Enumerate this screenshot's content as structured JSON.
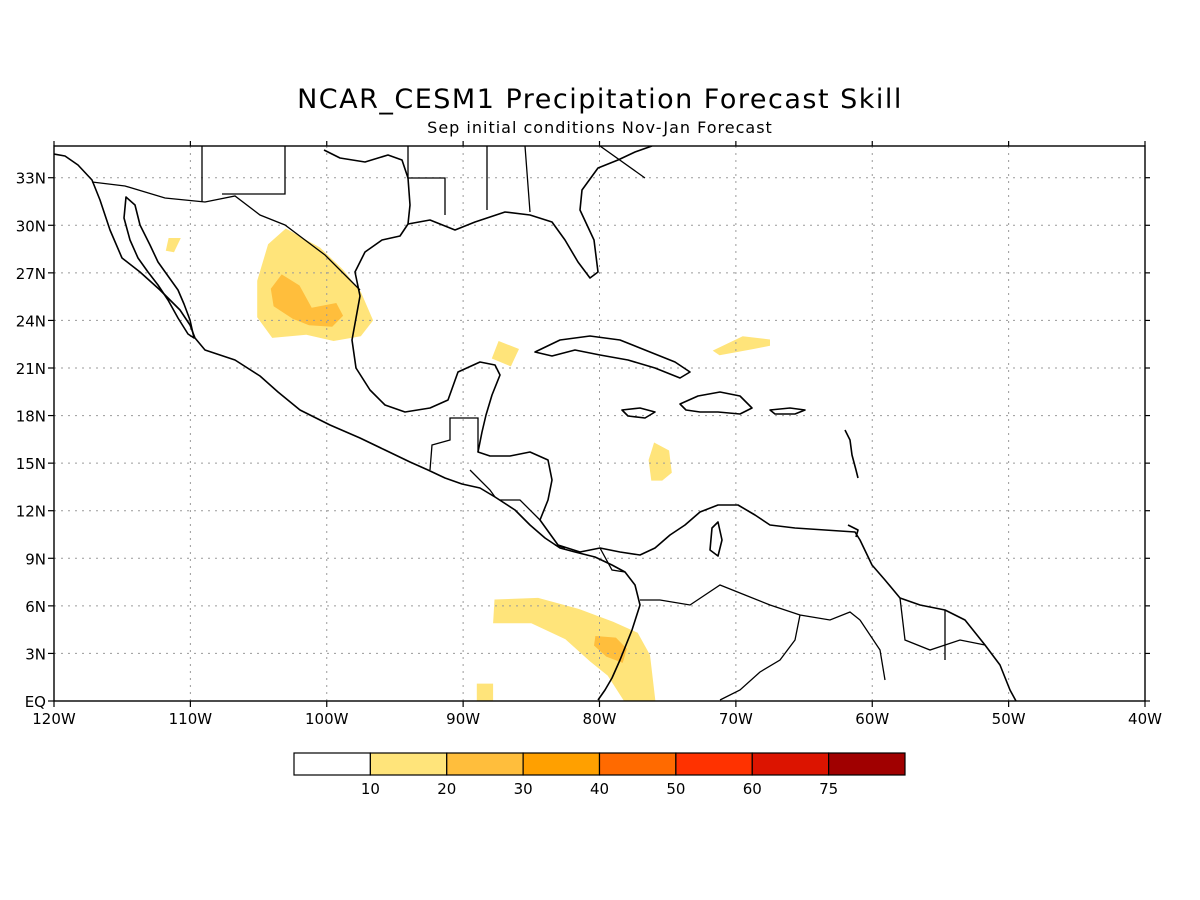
{
  "title": "NCAR_CESM1 Precipitation Forecast Skill",
  "subtitle": "Sep initial conditions   Nov-Jan Forecast",
  "map": {
    "lon_range": [
      -120,
      -40
    ],
    "lat_range": [
      0,
      35
    ],
    "x_ticks": [
      {
        "value": -120,
        "label": "120W"
      },
      {
        "value": -110,
        "label": "110W"
      },
      {
        "value": -100,
        "label": "100W"
      },
      {
        "value": -90,
        "label": "90W"
      },
      {
        "value": -80,
        "label": "80W"
      },
      {
        "value": -70,
        "label": "70W"
      },
      {
        "value": -60,
        "label": "60W"
      },
      {
        "value": -50,
        "label": "50W"
      },
      {
        "value": -40,
        "label": "40W"
      }
    ],
    "y_ticks": [
      {
        "value": 0,
        "label": "EQ"
      },
      {
        "value": 3,
        "label": "3N"
      },
      {
        "value": 6,
        "label": "6N"
      },
      {
        "value": 9,
        "label": "9N"
      },
      {
        "value": 12,
        "label": "12N"
      },
      {
        "value": 15,
        "label": "15N"
      },
      {
        "value": 18,
        "label": "18N"
      },
      {
        "value": 21,
        "label": "21N"
      },
      {
        "value": 24,
        "label": "24N"
      },
      {
        "value": 27,
        "label": "27N"
      },
      {
        "value": 30,
        "label": "30N"
      },
      {
        "value": 33,
        "label": "33N"
      }
    ],
    "grid": true
  },
  "legend": {
    "colors": [
      "#ffffff",
      "#ffe47a",
      "#ffbe3c",
      "#ffa000",
      "#ff6a00",
      "#ff3200",
      "#dc1400",
      "#a00000"
    ],
    "labels": [
      "10",
      "20",
      "30",
      "40",
      "50",
      "60",
      "75"
    ]
  },
  "skill_regions": [
    {
      "level": "10-20",
      "color": "#ffe47a",
      "points": [
        [
          -103,
          29.8
        ],
        [
          -100.5,
          28.6
        ],
        [
          -98.8,
          27.2
        ],
        [
          -97.5,
          25.8
        ],
        [
          -96.6,
          24
        ],
        [
          -97.5,
          23
        ],
        [
          -99.5,
          22.7
        ],
        [
          -101.5,
          23.1
        ],
        [
          -104,
          22.9
        ],
        [
          -105.1,
          24.2
        ],
        [
          -105.1,
          26.5
        ],
        [
          -104.3,
          28.8
        ]
      ]
    },
    {
      "level": "20-30",
      "color": "#ffbe3c",
      "points": [
        [
          -103.3,
          26.9
        ],
        [
          -102,
          26.2
        ],
        [
          -101.1,
          24.8
        ],
        [
          -99.3,
          25.1
        ],
        [
          -98.8,
          24.3
        ],
        [
          -99.6,
          23.6
        ],
        [
          -101.3,
          23.7
        ],
        [
          -102.5,
          24.1
        ],
        [
          -103.9,
          24.9
        ],
        [
          -104.1,
          26
        ]
      ]
    },
    {
      "level": "10-20",
      "color": "#ffe47a",
      "points": [
        [
          -110.7,
          29.2
        ],
        [
          -111.6,
          29.2
        ],
        [
          -111.8,
          28.4
        ],
        [
          -111.2,
          28.3
        ]
      ]
    },
    {
      "level": "10-20",
      "color": "#ffe47a",
      "points": [
        [
          -87.4,
          22.7
        ],
        [
          -85.9,
          22.2
        ],
        [
          -86.5,
          21.1
        ],
        [
          -87.9,
          21.6
        ]
      ]
    },
    {
      "level": "10-20",
      "color": "#ffe47a",
      "points": [
        [
          -71.2,
          21.8
        ],
        [
          -68.7,
          22.2
        ],
        [
          -67.5,
          22.4
        ],
        [
          -67.5,
          22.8
        ],
        [
          -69.5,
          23
        ],
        [
          -71.7,
          22.1
        ]
      ]
    },
    {
      "level": "10-20",
      "color": "#ffe47a",
      "points": [
        [
          -76,
          16.3
        ],
        [
          -74.9,
          15.8
        ],
        [
          -74.7,
          14.4
        ],
        [
          -75.4,
          13.9
        ],
        [
          -76.2,
          13.9
        ],
        [
          -76.4,
          15.2
        ]
      ]
    },
    {
      "level": "10-20",
      "color": "#ffe47a",
      "points": [
        [
          -87.7,
          6.4
        ],
        [
          -84.5,
          6.5
        ],
        [
          -81.5,
          5.8
        ],
        [
          -79,
          5
        ],
        [
          -77.2,
          4.3
        ],
        [
          -76.3,
          2.9
        ],
        [
          -75.9,
          0
        ],
        [
          -78.2,
          0
        ],
        [
          -79.4,
          1.6
        ],
        [
          -80.7,
          2.5
        ],
        [
          -82.5,
          3.9
        ],
        [
          -85,
          4.9
        ],
        [
          -87.8,
          4.9
        ]
      ]
    },
    {
      "level": "20-30",
      "color": "#ffbe3c",
      "points": [
        [
          -80.3,
          4.1
        ],
        [
          -78.8,
          4
        ],
        [
          -78,
          3.3
        ],
        [
          -78.3,
          2.4
        ],
        [
          -79.5,
          2.8
        ],
        [
          -80.4,
          3.5
        ]
      ]
    },
    {
      "level": "10-20",
      "color": "#ffe47a",
      "points": [
        [
          -89,
          1.1
        ],
        [
          -87.8,
          1.1
        ],
        [
          -87.8,
          0
        ],
        [
          -89,
          0
        ]
      ]
    }
  ]
}
